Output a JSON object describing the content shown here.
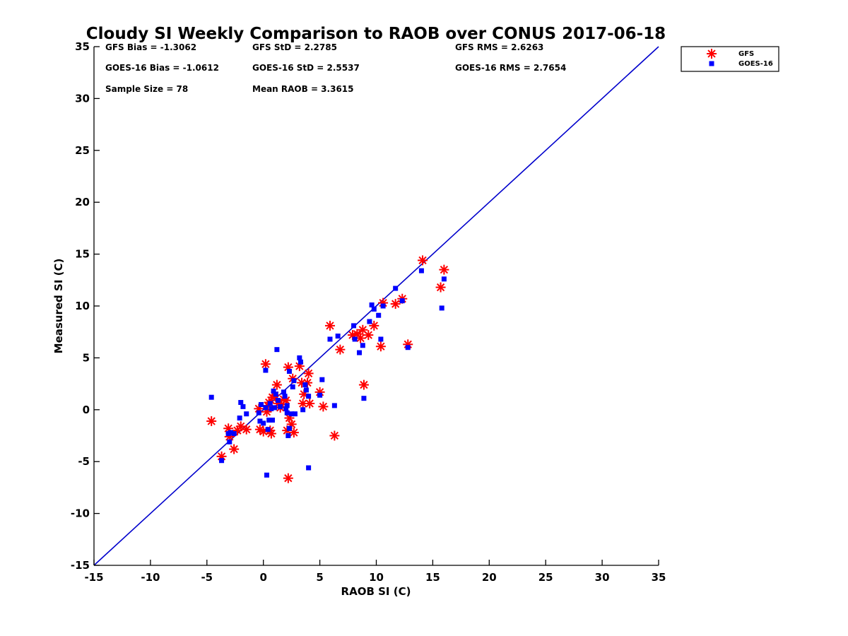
{
  "chart_data": {
    "type": "scatter",
    "title": "Cloudy SI Weekly Comparison to RAOB over CONUS 2017-06-18",
    "xlabel": "RAOB SI (C)",
    "ylabel": "Measured SI (C)",
    "xlim": [
      -15,
      35
    ],
    "ylim": [
      -15,
      35
    ],
    "xticks": [
      -15,
      -10,
      -5,
      0,
      5,
      10,
      15,
      20,
      25,
      30,
      35
    ],
    "yticks": [
      -15,
      -10,
      -5,
      0,
      5,
      10,
      15,
      20,
      25,
      30,
      35
    ],
    "grid": false,
    "legend_position": "top-right",
    "reference_line": {
      "x": [
        -15,
        35
      ],
      "y": [
        -15,
        35
      ],
      "color": "#0000cc"
    },
    "annotations": [
      [
        "GFS Bias = -1.3062",
        "GFS StD = 2.2785",
        "GFS RMS = 2.6263"
      ],
      [
        "GOES-16 Bias = -1.0612",
        "GOES-16 StD = 2.5537",
        "GOES-16 RMS = 2.7654"
      ],
      [
        "Sample Size = 78",
        "Mean RAOB = 3.3615",
        ""
      ]
    ],
    "series": [
      {
        "name": "GFS",
        "marker": "asterisk",
        "color": "#ff0000",
        "points": [
          [
            -4.6,
            -1.1
          ],
          [
            -3.7,
            -4.5
          ],
          [
            -3.1,
            -1.8
          ],
          [
            -3.0,
            -2.6
          ],
          [
            -2.6,
            -3.8
          ],
          [
            -2.3,
            -2.0
          ],
          [
            -2.0,
            -1.6
          ],
          [
            -1.5,
            -1.9
          ],
          [
            -0.4,
            0.1
          ],
          [
            -0.3,
            -1.9
          ],
          [
            0.0,
            -2.1
          ],
          [
            0.2,
            4.4
          ],
          [
            0.3,
            -0.2
          ],
          [
            0.4,
            0.4
          ],
          [
            0.5,
            0.7
          ],
          [
            0.6,
            -2.0
          ],
          [
            0.7,
            -2.3
          ],
          [
            0.8,
            1.2
          ],
          [
            1.0,
            1.4
          ],
          [
            1.2,
            2.4
          ],
          [
            1.3,
            0.6
          ],
          [
            1.5,
            0.2
          ],
          [
            1.6,
            0.5
          ],
          [
            1.8,
            1.0
          ],
          [
            2.0,
            0.9
          ],
          [
            2.1,
            -2.0
          ],
          [
            2.2,
            4.1
          ],
          [
            2.2,
            -6.6
          ],
          [
            2.3,
            -0.8
          ],
          [
            2.5,
            -1.4
          ],
          [
            2.6,
            3.0
          ],
          [
            2.7,
            -2.2
          ],
          [
            3.2,
            4.2
          ],
          [
            3.4,
            2.6
          ],
          [
            3.5,
            0.6
          ],
          [
            3.6,
            1.5
          ],
          [
            3.9,
            2.6
          ],
          [
            4.0,
            3.5
          ],
          [
            4.1,
            0.6
          ],
          [
            5.0,
            1.7
          ],
          [
            5.3,
            0.3
          ],
          [
            5.9,
            8.1
          ],
          [
            6.3,
            -2.5
          ],
          [
            6.8,
            5.8
          ],
          [
            7.9,
            7.2
          ],
          [
            8.3,
            7.3
          ],
          [
            8.6,
            6.9
          ],
          [
            8.8,
            7.7
          ],
          [
            8.9,
            2.4
          ],
          [
            9.3,
            7.2
          ],
          [
            9.8,
            8.1
          ],
          [
            10.4,
            6.1
          ],
          [
            10.6,
            10.3
          ],
          [
            11.7,
            10.2
          ],
          [
            12.3,
            10.7
          ],
          [
            12.8,
            6.3
          ],
          [
            14.1,
            14.4
          ],
          [
            15.7,
            11.8
          ],
          [
            16.0,
            13.5
          ]
        ]
      },
      {
        "name": "GOES-16",
        "marker": "square",
        "color": "#0000ff",
        "points": [
          [
            -4.6,
            1.2
          ],
          [
            -3.7,
            -4.9
          ],
          [
            -3.1,
            -2.3
          ],
          [
            -3.0,
            -3.1
          ],
          [
            -2.9,
            -2.2
          ],
          [
            -2.6,
            -2.3
          ],
          [
            -2.1,
            -0.8
          ],
          [
            -2.0,
            0.7
          ],
          [
            -1.8,
            0.3
          ],
          [
            -1.5,
            -0.4
          ],
          [
            -0.4,
            -0.3
          ],
          [
            -0.3,
            -1.1
          ],
          [
            -0.2,
            0.5
          ],
          [
            0.0,
            -1.3
          ],
          [
            0.2,
            0.2
          ],
          [
            0.2,
            3.8
          ],
          [
            0.3,
            -6.3
          ],
          [
            0.4,
            -1.9
          ],
          [
            0.5,
            -1.0
          ],
          [
            0.6,
            0.6
          ],
          [
            0.7,
            0.1
          ],
          [
            0.8,
            -1.0
          ],
          [
            0.9,
            1.8
          ],
          [
            1.0,
            0.2
          ],
          [
            1.1,
            1.5
          ],
          [
            1.2,
            5.8
          ],
          [
            1.3,
            0.9
          ],
          [
            1.5,
            0.3
          ],
          [
            1.8,
            1.7
          ],
          [
            1.9,
            1.3
          ],
          [
            2.0,
            0.1
          ],
          [
            2.1,
            0.4
          ],
          [
            2.1,
            -0.3
          ],
          [
            2.2,
            -2.5
          ],
          [
            2.3,
            -1.8
          ],
          [
            2.3,
            3.7
          ],
          [
            2.5,
            -0.4
          ],
          [
            2.6,
            2.2
          ],
          [
            2.7,
            2.8
          ],
          [
            2.8,
            -0.4
          ],
          [
            3.2,
            5.0
          ],
          [
            3.3,
            4.6
          ],
          [
            3.5,
            0.0
          ],
          [
            3.7,
            2.4
          ],
          [
            3.8,
            1.9
          ],
          [
            4.0,
            1.3
          ],
          [
            4.0,
            -5.6
          ],
          [
            5.0,
            1.4
          ],
          [
            5.2,
            2.9
          ],
          [
            5.9,
            6.8
          ],
          [
            6.3,
            0.4
          ],
          [
            6.6,
            7.1
          ],
          [
            8.0,
            8.1
          ],
          [
            8.1,
            6.8
          ],
          [
            8.5,
            5.5
          ],
          [
            8.8,
            6.2
          ],
          [
            8.9,
            1.1
          ],
          [
            9.4,
            8.5
          ],
          [
            9.6,
            10.1
          ],
          [
            9.8,
            9.7
          ],
          [
            10.2,
            9.1
          ],
          [
            10.4,
            6.8
          ],
          [
            10.6,
            10.0
          ],
          [
            11.7,
            11.7
          ],
          [
            12.3,
            10.5
          ],
          [
            12.8,
            6.0
          ],
          [
            14.0,
            13.4
          ],
          [
            15.8,
            9.8
          ],
          [
            16.0,
            12.6
          ]
        ]
      }
    ]
  }
}
